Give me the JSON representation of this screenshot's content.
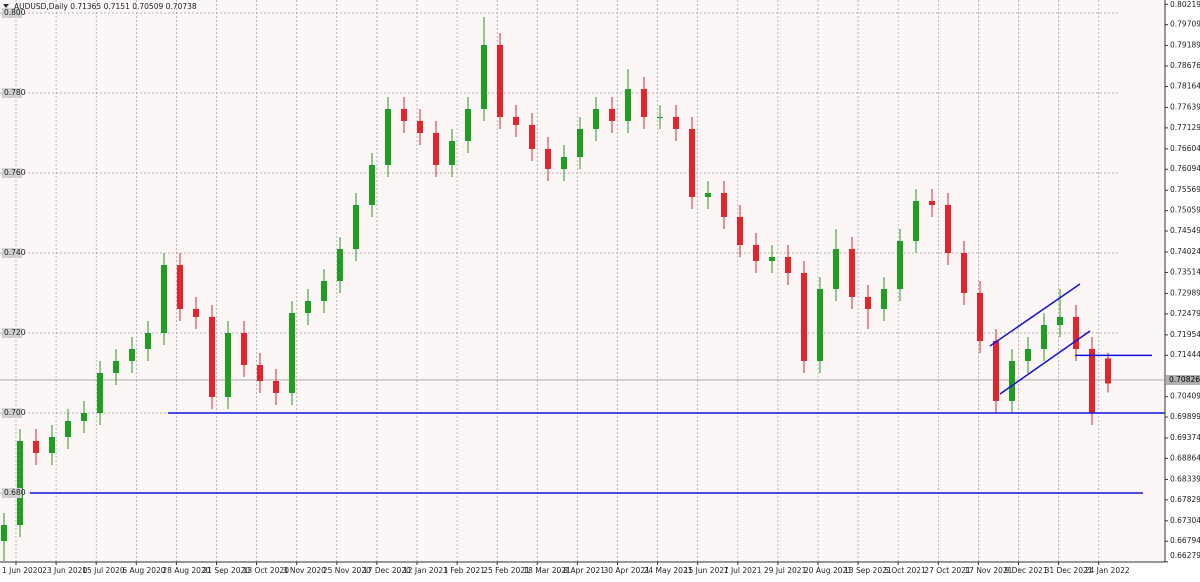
{
  "chart_data": {
    "type": "candlestick",
    "title": "AUDUSD,Daily",
    "open": [
      0.668,
      0.672,
      0.693,
      0.69,
      0.694,
      0.698,
      0.7,
      0.71,
      0.713,
      0.716,
      0.72,
      0.737,
      0.726,
      0.724,
      0.704,
      0.72,
      0.712,
      0.708,
      0.705,
      0.725,
      0.728,
      0.733,
      0.741,
      0.752,
      0.762,
      0.776,
      0.773,
      0.77,
      0.762,
      0.768,
      0.776,
      0.792,
      0.774,
      0.772,
      0.766,
      0.761,
      0.764,
      0.771,
      0.776,
      0.773,
      0.781,
      0.774,
      0.774,
      0.771,
      0.754,
      0.755,
      0.749,
      0.742,
      0.738,
      0.739,
      0.735,
      0.713,
      0.731,
      0.741,
      0.729,
      0.726,
      0.731,
      0.743,
      0.753,
      0.752,
      0.74,
      0.73,
      0.718,
      0.703,
      0.713,
      0.716,
      0.722,
      0.724,
      0.716,
      0.71365
    ],
    "high": [
      0.675,
      0.696,
      0.696,
      0.697,
      0.701,
      0.703,
      0.713,
      0.716,
      0.719,
      0.723,
      0.74,
      0.74,
      0.729,
      0.727,
      0.723,
      0.723,
      0.715,
      0.711,
      0.728,
      0.731,
      0.736,
      0.744,
      0.755,
      0.765,
      0.779,
      0.779,
      0.776,
      0.773,
      0.771,
      0.779,
      0.799,
      0.795,
      0.777,
      0.775,
      0.769,
      0.767,
      0.774,
      0.779,
      0.779,
      0.786,
      0.784,
      0.777,
      0.777,
      0.774,
      0.758,
      0.758,
      0.752,
      0.745,
      0.742,
      0.742,
      0.738,
      0.734,
      0.746,
      0.744,
      0.732,
      0.734,
      0.746,
      0.756,
      0.756,
      0.755,
      0.743,
      0.733,
      0.721,
      0.716,
      0.719,
      0.725,
      0.731,
      0.727,
      0.719,
      0.7151
    ],
    "low": [
      0.663,
      0.669,
      0.687,
      0.687,
      0.691,
      0.695,
      0.697,
      0.707,
      0.71,
      0.713,
      0.717,
      0.723,
      0.721,
      0.701,
      0.701,
      0.709,
      0.705,
      0.702,
      0.702,
      0.722,
      0.725,
      0.73,
      0.738,
      0.749,
      0.759,
      0.77,
      0.767,
      0.759,
      0.759,
      0.765,
      0.773,
      0.771,
      0.769,
      0.763,
      0.758,
      0.758,
      0.761,
      0.768,
      0.77,
      0.77,
      0.771,
      0.771,
      0.768,
      0.751,
      0.751,
      0.746,
      0.739,
      0.735,
      0.735,
      0.732,
      0.71,
      0.71,
      0.728,
      0.726,
      0.721,
      0.723,
      0.728,
      0.74,
      0.749,
      0.737,
      0.727,
      0.715,
      0.7,
      0.7,
      0.71,
      0.713,
      0.719,
      0.713,
      0.697,
      0.70509
    ],
    "close": [
      0.672,
      0.693,
      0.69,
      0.694,
      0.698,
      0.7,
      0.71,
      0.713,
      0.716,
      0.72,
      0.737,
      0.726,
      0.724,
      0.704,
      0.72,
      0.712,
      0.708,
      0.705,
      0.725,
      0.728,
      0.733,
      0.741,
      0.752,
      0.762,
      0.776,
      0.773,
      0.77,
      0.762,
      0.768,
      0.776,
      0.792,
      0.774,
      0.772,
      0.766,
      0.761,
      0.764,
      0.771,
      0.776,
      0.773,
      0.781,
      0.774,
      0.774,
      0.771,
      0.754,
      0.755,
      0.749,
      0.742,
      0.738,
      0.739,
      0.735,
      0.713,
      0.731,
      0.741,
      0.729,
      0.726,
      0.731,
      0.743,
      0.753,
      0.752,
      0.74,
      0.73,
      0.718,
      0.703,
      0.713,
      0.716,
      0.722,
      0.724,
      0.716,
      0.7,
      0.70738
    ],
    "up_color": "#1f9e1f",
    "down_color": "#e0262b",
    "x_labels": [
      "1 Jun 2020",
      "23 Jun 2020",
      "15 Jul 2020",
      "6 Aug 2020",
      "28 Aug 2020",
      "21 Sep 2020",
      "13 Oct 2020",
      "3 Nov 2020",
      "25 Nov 2020",
      "17 Dec 2020",
      "12 Jan 2021",
      "3 Feb 2021",
      "25 Feb 2021",
      "18 Mar 2021",
      "8 Apr 2021",
      "30 Apr 2021",
      "24 May 2021",
      "15 Jun 2021",
      "7 Jul 2021",
      "29 Jul 2021",
      "20 Aug 2021",
      "13 Sep 2021",
      "5 Oct 2021",
      "27 Oct 2021",
      "17 Nov 2021",
      "9 Dec 2021",
      "31 Dec 2021",
      "24 Jan 2022"
    ],
    "ylim": [
      0.66275,
      0.80325
    ],
    "yticks": [
      0.80219,
      0.79709,
      0.79189,
      0.78676,
      0.78164,
      0.77639,
      0.77129,
      0.76604,
      0.76094,
      0.75569,
      0.75059,
      0.74549,
      0.74024,
      0.73514,
      0.72989,
      0.72479,
      0.71954,
      0.71444,
      0.70409,
      0.69899,
      0.69374,
      0.68864,
      0.68339,
      0.67829,
      0.67304,
      0.66794,
      0.66279
    ],
    "price_levels": [
      {
        "value": 0.8,
        "label": "0.800"
      },
      {
        "value": 0.78,
        "label": "0.780"
      },
      {
        "value": 0.76,
        "label": "0.760"
      },
      {
        "value": 0.74,
        "label": "0.740"
      },
      {
        "value": 0.72,
        "label": "0.720"
      },
      {
        "value": 0.7,
        "label": "0.700"
      },
      {
        "value": 0.68,
        "label": "0.680"
      }
    ],
    "current_price": 0.70826,
    "horizontal_lines": [
      0.7,
      0.68,
      0.7144
    ],
    "grid": true
  }
}
